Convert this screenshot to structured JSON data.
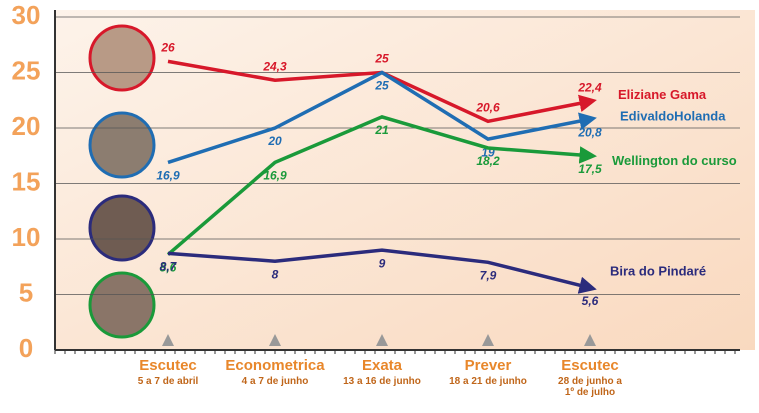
{
  "chart_data": {
    "type": "line",
    "categories": [
      "Escutec",
      "Econometrica",
      "Exata",
      "Prever",
      "Escutec"
    ],
    "category_subtitles": [
      "5 a 7 de abril",
      "4 a 7 de junho",
      "13 a 16 de junho",
      "18 a 21 de junho",
      "28 de junho a 1º de julho"
    ],
    "series": [
      {
        "name": "Eliziane Gama",
        "color": "#d7182a",
        "values": [
          26,
          24.3,
          25,
          20.6,
          22.4
        ],
        "value_labels": [
          "26",
          "24,3",
          "25",
          "20,6",
          "22,4"
        ]
      },
      {
        "name": "EdivaldoHolanda",
        "color": "#1f6db3",
        "values": [
          16.9,
          20,
          25,
          19,
          20.8
        ],
        "value_labels": [
          "16,9",
          "20",
          "25",
          "19",
          "20,8"
        ]
      },
      {
        "name": "Wellington do curso",
        "color": "#1a9a3a",
        "values": [
          8.6,
          16.9,
          21,
          18.2,
          17.5
        ],
        "value_labels": [
          "8,6",
          "16,9",
          "21",
          "18,2",
          "17,5"
        ]
      },
      {
        "name": "Bira do Pindaré",
        "color": "#2b2b7c",
        "values": [
          8.7,
          8,
          9,
          7.9,
          5.6
        ],
        "value_labels": [
          "8,7",
          "8",
          "9",
          "7,9",
          "5,6"
        ]
      }
    ],
    "ylim": [
      0,
      30
    ],
    "yticks": [
      0,
      5,
      10,
      15,
      20,
      25,
      30
    ],
    "grid": true
  }
}
